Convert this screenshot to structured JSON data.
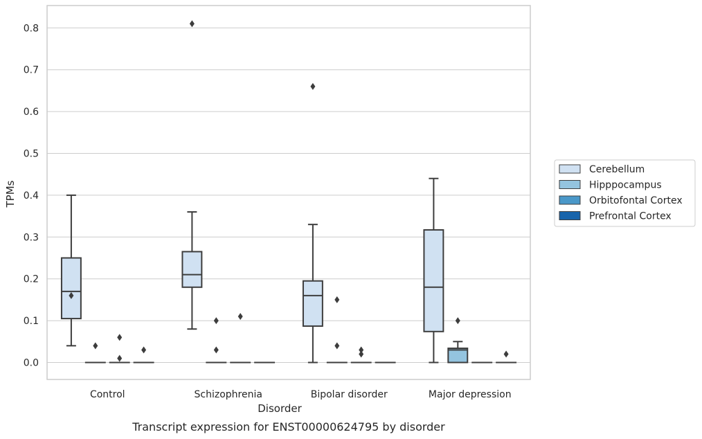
{
  "chart_data": {
    "type": "box",
    "caption": "Transcript expression for ENST00000624795 by disorder",
    "xlabel": "Disorder",
    "ylabel": "TPMs",
    "ylim": [
      -0.04,
      0.85
    ],
    "yticks": [
      0.0,
      0.1,
      0.2,
      0.3,
      0.4,
      0.5,
      0.6,
      0.7,
      0.8
    ],
    "ytick_labels": [
      "0.0",
      "0.1",
      "0.2",
      "0.3",
      "0.4",
      "0.5",
      "0.6",
      "0.7",
      "0.8"
    ],
    "grid": true,
    "legend_position": "right",
    "categories": [
      "Control",
      "Schizophrenia",
      "Bipolar disorder",
      "Major depression"
    ],
    "series": [
      {
        "name": "Cerebellum",
        "color": "#d0e1f2",
        "boxes": [
          {
            "whislo": 0.04,
            "q1": 0.105,
            "med": 0.17,
            "q3": 0.25,
            "whishi": 0.4,
            "fliers": [
              0.16
            ]
          },
          {
            "whislo": 0.08,
            "q1": 0.18,
            "med": 0.21,
            "q3": 0.265,
            "whishi": 0.36,
            "fliers": [
              0.81
            ]
          },
          {
            "whislo": 0.0,
            "q1": 0.087,
            "med": 0.16,
            "q3": 0.195,
            "whishi": 0.33,
            "fliers": [
              0.66
            ]
          },
          {
            "whislo": 0.0,
            "q1": 0.074,
            "med": 0.18,
            "q3": 0.317,
            "whishi": 0.44,
            "fliers": []
          }
        ]
      },
      {
        "name": "Hipppocampus",
        "color": "#94c4df",
        "boxes": [
          {
            "whislo": 0.0,
            "q1": 0.0,
            "med": 0.0,
            "q3": 0.0,
            "whishi": 0.0,
            "fliers": [
              0.04
            ]
          },
          {
            "whislo": 0.0,
            "q1": 0.0,
            "med": 0.0,
            "q3": 0.0,
            "whishi": 0.0,
            "fliers": [
              0.1,
              0.03
            ]
          },
          {
            "whislo": 0.0,
            "q1": 0.0,
            "med": 0.0,
            "q3": 0.0,
            "whishi": 0.0,
            "fliers": [
              0.15,
              0.04
            ]
          },
          {
            "whislo": 0.0,
            "q1": 0.0,
            "med": 0.03,
            "q3": 0.034,
            "whishi": 0.05,
            "fliers": [
              0.1
            ]
          }
        ]
      },
      {
        "name": "Orbitofontal Cortex",
        "color": "#4a98c9",
        "boxes": [
          {
            "whislo": 0.0,
            "q1": 0.0,
            "med": 0.0,
            "q3": 0.0,
            "whishi": 0.0,
            "fliers": [
              0.06,
              0.01
            ]
          },
          {
            "whislo": 0.0,
            "q1": 0.0,
            "med": 0.0,
            "q3": 0.0,
            "whishi": 0.0,
            "fliers": [
              0.11
            ]
          },
          {
            "whislo": 0.0,
            "q1": 0.0,
            "med": 0.0,
            "q3": 0.0,
            "whishi": 0.0,
            "fliers": [
              0.03,
              0.02
            ]
          },
          {
            "whislo": 0.0,
            "q1": 0.0,
            "med": 0.0,
            "q3": 0.0,
            "whishi": 0.0,
            "fliers": []
          }
        ]
      },
      {
        "name": "Prefrontal Cortex",
        "color": "#1764ab",
        "boxes": [
          {
            "whislo": 0.0,
            "q1": 0.0,
            "med": 0.0,
            "q3": 0.0,
            "whishi": 0.0,
            "fliers": [
              0.03
            ]
          },
          {
            "whislo": 0.0,
            "q1": 0.0,
            "med": 0.0,
            "q3": 0.0,
            "whishi": 0.0,
            "fliers": []
          },
          {
            "whislo": 0.0,
            "q1": 0.0,
            "med": 0.0,
            "q3": 0.0,
            "whishi": 0.0,
            "fliers": []
          },
          {
            "whislo": 0.0,
            "q1": 0.0,
            "med": 0.0,
            "q3": 0.0,
            "whishi": 0.0,
            "fliers": [
              0.02
            ]
          }
        ]
      }
    ]
  }
}
